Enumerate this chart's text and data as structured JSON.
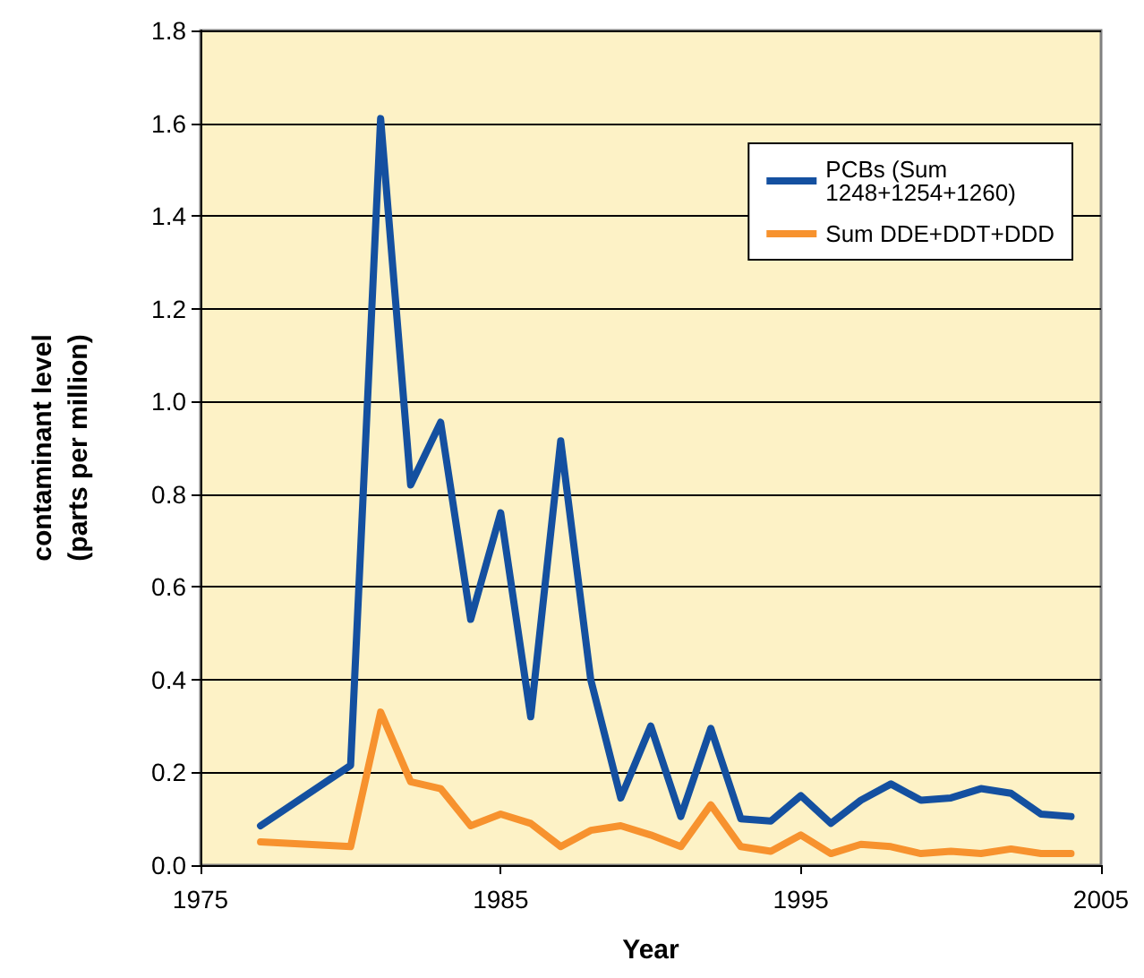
{
  "chart_data": {
    "type": "line",
    "xlabel": "Year",
    "ylabel": "contaminant level\n(parts per million)",
    "x": [
      1977,
      1980,
      1981,
      1982,
      1983,
      1984,
      1985,
      1986,
      1987,
      1988,
      1989,
      1990,
      1991,
      1992,
      1993,
      1994,
      1995,
      1996,
      1997,
      1998,
      1999,
      2000,
      2001,
      2002,
      2003,
      2004
    ],
    "series": [
      {
        "name": "PCBs (Sum 1248+1254+1260)",
        "color": "#1450a0",
        "values": [
          0.085,
          0.215,
          1.61,
          0.82,
          0.955,
          0.53,
          0.76,
          0.32,
          0.915,
          0.4,
          0.145,
          0.3,
          0.105,
          0.295,
          0.1,
          0.095,
          0.15,
          0.09,
          0.14,
          0.175,
          0.14,
          0.145,
          0.165,
          0.155,
          0.11,
          0.105
        ]
      },
      {
        "name": "Sum DDE+DDT+DDD",
        "color": "#f7922e",
        "values": [
          0.05,
          0.04,
          0.33,
          0.18,
          0.165,
          0.085,
          0.11,
          0.09,
          0.04,
          0.075,
          0.085,
          0.065,
          0.04,
          0.13,
          0.04,
          0.03,
          0.065,
          0.025,
          0.045,
          0.04,
          0.025,
          0.03,
          0.025,
          0.035,
          0.025,
          0.025
        ]
      }
    ],
    "xlim": [
      1975,
      2005
    ],
    "xticks": [
      1975,
      1985,
      1995,
      2005
    ],
    "ylim": [
      0,
      1.8
    ],
    "yticks": [
      {
        "value": 0,
        "label": "0.0"
      },
      0.2,
      0.4,
      0.6,
      0.8,
      {
        "value": 1,
        "label": "1.0"
      },
      1.2,
      1.4,
      1.6,
      1.8
    ],
    "grid": "y",
    "legend": "top right",
    "marker": "none",
    "line_style": "solid"
  }
}
